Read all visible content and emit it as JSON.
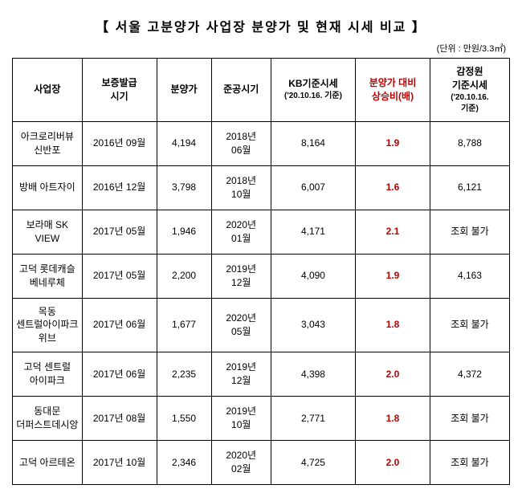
{
  "title": "【 서울 고분양가 사업장 분양가 및 현재 시세 비교 】",
  "unit": "(단위 : 만원/3.3㎡)",
  "columns": {
    "site": "사업장",
    "issueDate": "보증발급\n시기",
    "price": "분양가",
    "completion": "준공시기",
    "kb": "KB기준시세",
    "kbSub": "('20.10.16. 기준)",
    "ratio": "분양가 대비\n상승비(배)",
    "appraise": "감정원\n기준시세",
    "appraiseSub": "('20.10.16.\n기준)"
  },
  "rows": [
    {
      "site": "아크로리버뷰\n신반포",
      "issueDate": "2016년  09월",
      "price": "4,194",
      "completion": "2018년\n06월",
      "kb": "8,164",
      "ratio": "1.9",
      "appraise": "8,788"
    },
    {
      "site": "방배 아트자이",
      "issueDate": "2016년  12월",
      "price": "3,798",
      "completion": "2018년\n10월",
      "kb": "6,007",
      "ratio": "1.6",
      "appraise": "6,121"
    },
    {
      "site": "보라매 SK\nVIEW",
      "issueDate": "2017년  05월",
      "price": "1,946",
      "completion": "2020년\n01월",
      "kb": "4,171",
      "ratio": "2.1",
      "appraise": "조회 불가"
    },
    {
      "site": "고덕 롯데캐슬\n베네루체",
      "issueDate": "2017년  05월",
      "price": "2,200",
      "completion": "2019년\n12월",
      "kb": "4,090",
      "ratio": "1.9",
      "appraise": "4,163"
    },
    {
      "site": "목동\n센트럴아이파크\n위브",
      "issueDate": "2017년  06월",
      "price": "1,677",
      "completion": "2020년\n05월",
      "kb": "3,043",
      "ratio": "1.8",
      "appraise": "조회 불가"
    },
    {
      "site": "고덕 센트럴\n아이파크",
      "issueDate": "2017년  06월",
      "price": "2,235",
      "completion": "2019년\n12월",
      "kb": "4,398",
      "ratio": "2.0",
      "appraise": "4,372"
    },
    {
      "site": "동대문\n더퍼스트데시앙",
      "issueDate": "2017년  08월",
      "price": "1,550",
      "completion": "2019년\n10월",
      "kb": "2,771",
      "ratio": "1.8",
      "appraise": "조회 불가"
    },
    {
      "site": "고덕 아르테온",
      "issueDate": "2017년  10월",
      "price": "2,346",
      "completion": "2020년\n02월",
      "kb": "4,725",
      "ratio": "2.0",
      "appraise": "조회 불가"
    }
  ]
}
